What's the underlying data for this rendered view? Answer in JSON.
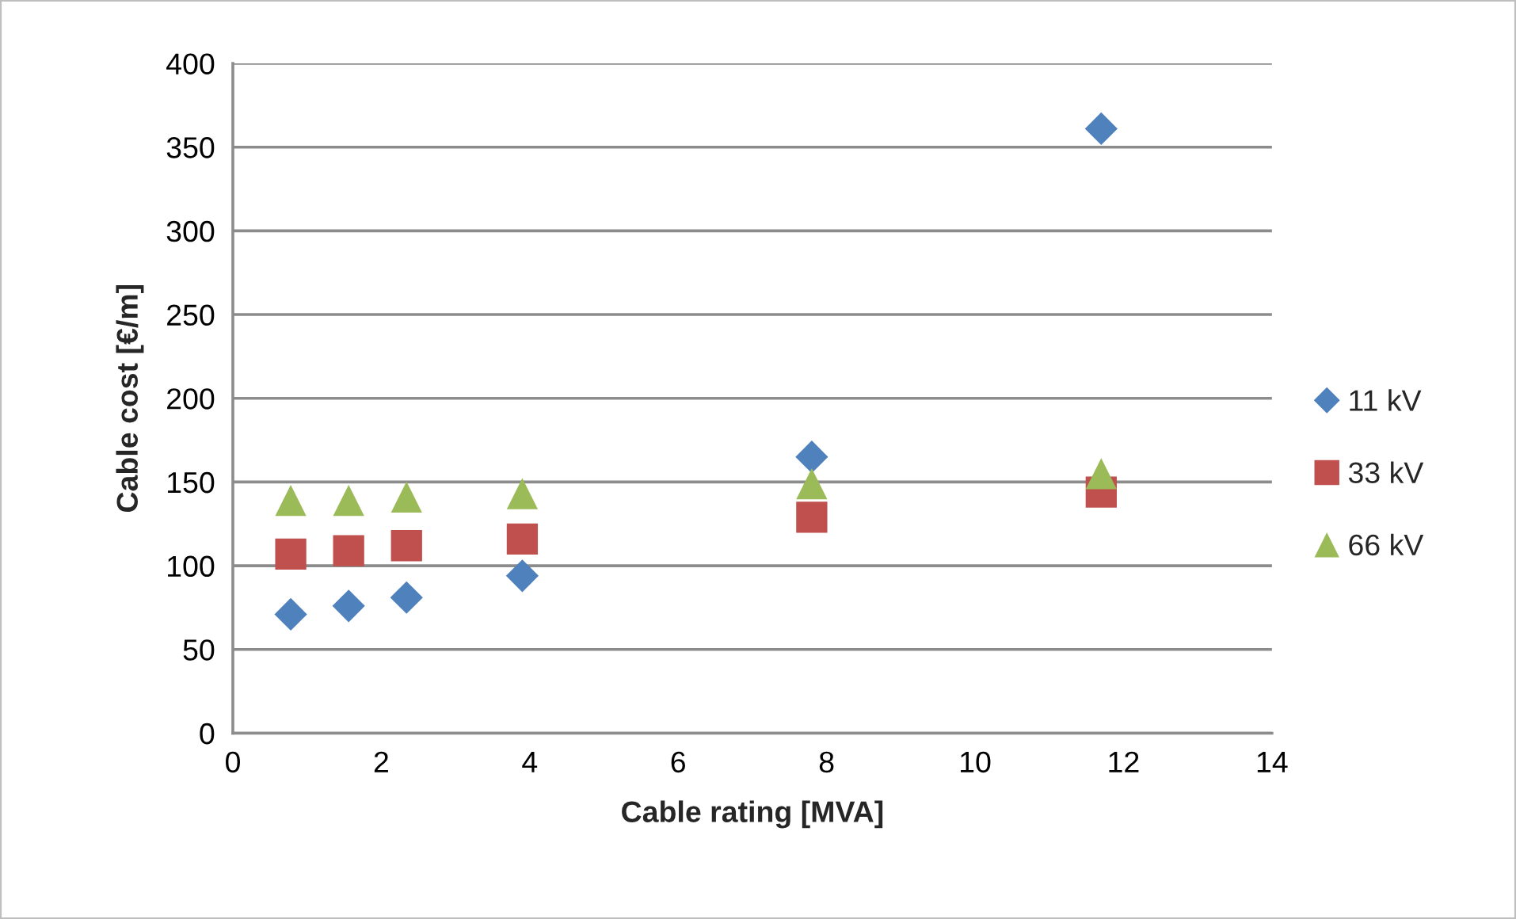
{
  "chart_data": {
    "type": "scatter",
    "xlabel": "Cable rating [MVA]",
    "ylabel": "Cable cost [€/m]",
    "x": [
      0.78,
      1.56,
      2.34,
      3.9,
      7.8,
      11.7
    ],
    "series": [
      {
        "name": "11 kV",
        "color": "#4f81bd",
        "marker": "diamond",
        "values": [
          71,
          76,
          81,
          94,
          165,
          361
        ]
      },
      {
        "name": "33 kV",
        "color": "#c0504d",
        "marker": "square",
        "values": [
          107,
          109,
          112,
          116,
          129,
          144
        ]
      },
      {
        "name": "66 kV",
        "color": "#9bbb59",
        "marker": "triangle",
        "values": [
          139,
          139,
          141,
          143,
          149,
          155
        ]
      }
    ],
    "xlim": [
      0,
      14
    ],
    "xticks": [
      0,
      2,
      4,
      6,
      8,
      10,
      12,
      14
    ],
    "ylim": [
      0,
      400
    ],
    "yticks": [
      0,
      50,
      100,
      150,
      200,
      250,
      300,
      350,
      400
    ],
    "grid": "y",
    "legend": "right"
  }
}
